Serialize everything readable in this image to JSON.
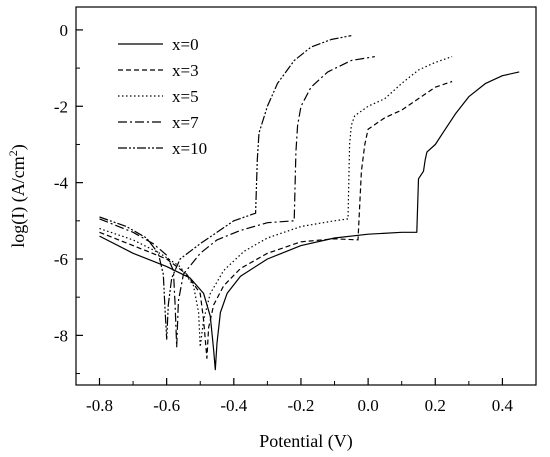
{
  "chart_data": {
    "type": "line",
    "title": "",
    "xlabel": "Potential (V)",
    "ylabel_main": "log(I) (A/cm",
    "ylabel_sup": "2",
    "ylabel_tail": ")",
    "xlim": [
      -0.87,
      0.5
    ],
    "ylim": [
      -9.3,
      0.6
    ],
    "xticks": [
      -0.8,
      -0.6,
      -0.4,
      -0.2,
      0.0,
      0.2,
      0.4
    ],
    "xtick_labels": [
      "-0.8",
      "-0.6",
      "-0.4",
      "-0.2",
      "0.0",
      "0.2",
      "0.4"
    ],
    "yticks": [
      0,
      -2,
      -4,
      -6,
      -8
    ],
    "ytick_labels": [
      "0",
      "-2",
      "-4",
      "-6",
      "-8"
    ],
    "grid": false,
    "legend_position": "top-left",
    "series": [
      {
        "name": "x=0",
        "dash": "",
        "points": [
          [
            -0.8,
            -5.4
          ],
          [
            -0.7,
            -5.85
          ],
          [
            -0.6,
            -6.2
          ],
          [
            -0.53,
            -6.5
          ],
          [
            -0.49,
            -6.9
          ],
          [
            -0.47,
            -7.5
          ],
          [
            -0.46,
            -8.4
          ],
          [
            -0.455,
            -8.9
          ],
          [
            -0.45,
            -8.2
          ],
          [
            -0.44,
            -7.4
          ],
          [
            -0.42,
            -6.9
          ],
          [
            -0.38,
            -6.45
          ],
          [
            -0.3,
            -6.0
          ],
          [
            -0.2,
            -5.65
          ],
          [
            -0.1,
            -5.45
          ],
          [
            0.0,
            -5.35
          ],
          [
            0.1,
            -5.3
          ],
          [
            0.145,
            -5.3
          ],
          [
            0.15,
            -3.9
          ],
          [
            0.165,
            -3.7
          ],
          [
            0.17,
            -3.4
          ],
          [
            0.175,
            -3.2
          ],
          [
            0.2,
            -3.0
          ],
          [
            0.23,
            -2.6
          ],
          [
            0.26,
            -2.2
          ],
          [
            0.3,
            -1.75
          ],
          [
            0.35,
            -1.4
          ],
          [
            0.4,
            -1.2
          ],
          [
            0.45,
            -1.1
          ]
        ]
      },
      {
        "name": "x=3",
        "dash": "5,3",
        "points": [
          [
            -0.8,
            -5.3
          ],
          [
            -0.7,
            -5.65
          ],
          [
            -0.6,
            -6.0
          ],
          [
            -0.54,
            -6.4
          ],
          [
            -0.5,
            -6.9
          ],
          [
            -0.49,
            -7.6
          ],
          [
            -0.48,
            -8.6
          ],
          [
            -0.475,
            -7.8
          ],
          [
            -0.46,
            -7.2
          ],
          [
            -0.43,
            -6.7
          ],
          [
            -0.38,
            -6.25
          ],
          [
            -0.3,
            -5.85
          ],
          [
            -0.2,
            -5.55
          ],
          [
            -0.1,
            -5.47
          ],
          [
            -0.03,
            -5.5
          ],
          [
            -0.02,
            -3.7
          ],
          [
            -0.01,
            -3.0
          ],
          [
            0.0,
            -2.6
          ],
          [
            0.05,
            -2.3
          ],
          [
            0.1,
            -2.1
          ],
          [
            0.15,
            -1.8
          ],
          [
            0.2,
            -1.5
          ],
          [
            0.25,
            -1.35
          ]
        ]
      },
      {
        "name": "x=5",
        "dash": "1.5,2.5",
        "points": [
          [
            -0.8,
            -5.2
          ],
          [
            -0.7,
            -5.5
          ],
          [
            -0.62,
            -5.85
          ],
          [
            -0.56,
            -6.2
          ],
          [
            -0.52,
            -6.7
          ],
          [
            -0.505,
            -7.4
          ],
          [
            -0.5,
            -8.3
          ],
          [
            -0.49,
            -7.6
          ],
          [
            -0.47,
            -6.9
          ],
          [
            -0.43,
            -6.3
          ],
          [
            -0.37,
            -5.8
          ],
          [
            -0.3,
            -5.45
          ],
          [
            -0.2,
            -5.15
          ],
          [
            -0.1,
            -5.0
          ],
          [
            -0.06,
            -4.95
          ],
          [
            -0.055,
            -3.0
          ],
          [
            -0.05,
            -2.5
          ],
          [
            -0.04,
            -2.25
          ],
          [
            0.0,
            -2.0
          ],
          [
            0.05,
            -1.8
          ],
          [
            0.1,
            -1.4
          ],
          [
            0.15,
            -1.05
          ],
          [
            0.2,
            -0.85
          ],
          [
            0.25,
            -0.7
          ]
        ]
      },
      {
        "name": "x=7",
        "dash": "9,3,2,3",
        "points": [
          [
            -0.8,
            -4.95
          ],
          [
            -0.7,
            -5.3
          ],
          [
            -0.64,
            -5.6
          ],
          [
            -0.6,
            -5.9
          ],
          [
            -0.58,
            -6.3
          ],
          [
            -0.575,
            -7.2
          ],
          [
            -0.57,
            -8.3
          ],
          [
            -0.565,
            -7.1
          ],
          [
            -0.55,
            -6.4
          ],
          [
            -0.5,
            -5.85
          ],
          [
            -0.45,
            -5.5
          ],
          [
            -0.38,
            -5.25
          ],
          [
            -0.3,
            -5.05
          ],
          [
            -0.22,
            -5.0
          ],
          [
            -0.215,
            -3.2
          ],
          [
            -0.21,
            -2.5
          ],
          [
            -0.2,
            -2.0
          ],
          [
            -0.17,
            -1.5
          ],
          [
            -0.12,
            -1.1
          ],
          [
            -0.05,
            -0.8
          ],
          [
            0.02,
            -0.7
          ]
        ]
      },
      {
        "name": "x=10",
        "dash": "9,2,2,2,2,2",
        "points": [
          [
            -0.8,
            -4.9
          ],
          [
            -0.72,
            -5.15
          ],
          [
            -0.66,
            -5.45
          ],
          [
            -0.625,
            -5.85
          ],
          [
            -0.61,
            -6.4
          ],
          [
            -0.605,
            -7.3
          ],
          [
            -0.6,
            -8.1
          ],
          [
            -0.595,
            -7.2
          ],
          [
            -0.585,
            -6.5
          ],
          [
            -0.56,
            -6.0
          ],
          [
            -0.5,
            -5.6
          ],
          [
            -0.45,
            -5.3
          ],
          [
            -0.4,
            -5.0
          ],
          [
            -0.335,
            -4.8
          ],
          [
            -0.33,
            -3.4
          ],
          [
            -0.325,
            -2.7
          ],
          [
            -0.3,
            -2.0
          ],
          [
            -0.27,
            -1.4
          ],
          [
            -0.22,
            -0.8
          ],
          [
            -0.17,
            -0.45
          ],
          [
            -0.11,
            -0.25
          ],
          [
            -0.05,
            -0.15
          ]
        ]
      }
    ]
  }
}
